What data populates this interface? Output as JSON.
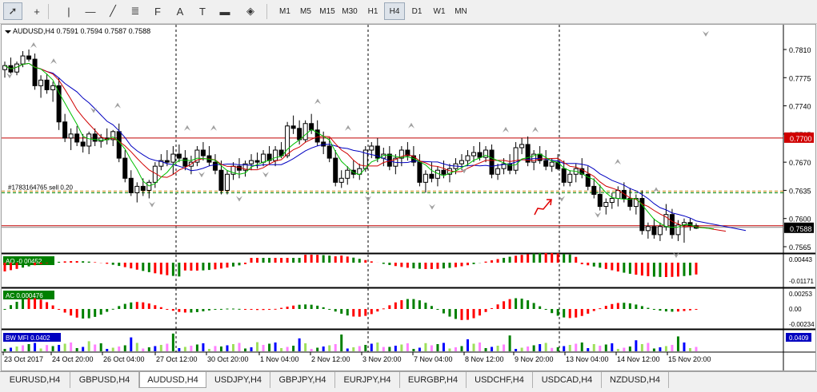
{
  "toolbar": {
    "tools": [
      {
        "name": "cursor-tool",
        "glyph": "➚"
      },
      {
        "name": "crosshair-tool",
        "glyph": "+"
      },
      {
        "name": "vertical-line-tool",
        "glyph": "|"
      },
      {
        "name": "horizontal-line-tool",
        "glyph": "—"
      },
      {
        "name": "trendline-tool",
        "glyph": "╱"
      },
      {
        "name": "equidistant-channel-tool",
        "glyph": "≣"
      },
      {
        "name": "fibonacci-tool",
        "glyph": "F"
      },
      {
        "name": "text-tool",
        "glyph": "A"
      },
      {
        "name": "text-label-tool",
        "glyph": "T"
      },
      {
        "name": "rectangle-tool",
        "glyph": "▬"
      },
      {
        "name": "arrows-tool",
        "glyph": "◈"
      }
    ],
    "timeframes": [
      "M1",
      "M5",
      "M15",
      "M30",
      "H1",
      "H4",
      "D1",
      "W1",
      "MN"
    ],
    "selected_timeframe": "H4"
  },
  "chart": {
    "header": "AUDUSD,H4  0.7591 0.7594 0.7587 0.7588",
    "order_label": "#1783164765 sell 0.20",
    "price_ticks": [
      "0.7810",
      "0.7775",
      "0.7740",
      "0.7705",
      "0.7670",
      "0.7635",
      "0.7600",
      "0.7565"
    ],
    "price_badge_red": "0.7700",
    "price_badge_current": "0.7588",
    "time_ticks": [
      "23 Oct 2017",
      "24 Oct 20:00",
      "26 Oct 04:00",
      "27 Oct 12:00",
      "30 Oct 20:00",
      "1 Nov 04:00",
      "2 Nov 12:00",
      "3 Nov 20:00",
      "7 Nov 04:00",
      "8 Nov 12:00",
      "9 Nov 20:00",
      "13 Nov 04:00",
      "14 Nov 12:00",
      "15 Nov 20:00"
    ],
    "ao": {
      "label": "AO -0.00452",
      "scale_top": "0.00443",
      "scale_bottom": "-0.01171"
    },
    "ac": {
      "label": "AC 0.000476",
      "scale_top": "0.00253",
      "scale_mid": "0.00",
      "scale_bottom": "-0.00234"
    },
    "mfi": {
      "label": "BW MFI 0.0402",
      "scale": "0.0409"
    },
    "colors": {
      "bull": "#008000",
      "bear": "#ff0000",
      "ma_green": "#00c000",
      "ma_red": "#d00000",
      "ma_blue": "#0000c0",
      "mfi_blue": "#0000ff",
      "mfi_lime": "#9ee05a",
      "mfi_pink": "#ff80ff",
      "arrow": "#a0a0a0",
      "drawn": "#e00000"
    }
  },
  "tabs": [
    "EURUSD,H4",
    "GBPUSD,H4",
    "AUDUSD,H4",
    "USDJPY,H4",
    "GBPJPY,H4",
    "EURJPY,H4",
    "EURGBP,H4",
    "USDCHF,H4",
    "USDCAD,H4",
    "NZDUSD,H4"
  ],
  "active_tab": "AUDUSD,H4"
}
